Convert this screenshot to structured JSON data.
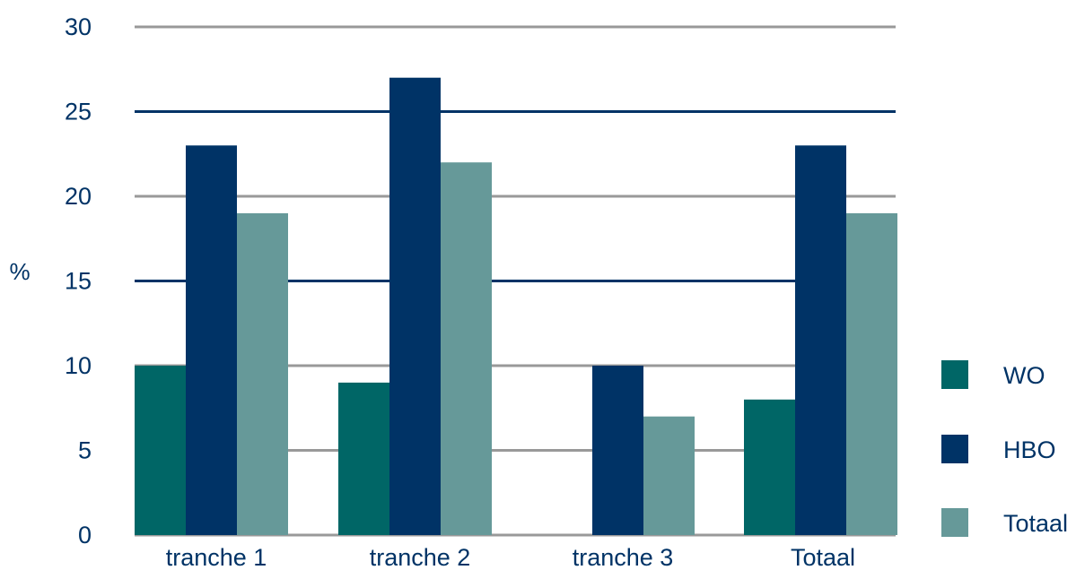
{
  "chart_data": {
    "type": "bar",
    "title": "",
    "xlabel": "",
    "ylabel": "%",
    "ylim": [
      0,
      30
    ],
    "yticks": [
      0,
      5,
      10,
      15,
      20,
      25,
      30
    ],
    "grid": true,
    "legend_position": "right",
    "categories": [
      "tranche 1",
      "tranche 2",
      "tranche 3",
      "Totaal"
    ],
    "series": [
      {
        "name": "WO",
        "color": "#006666",
        "values": [
          10,
          9,
          0,
          8
        ]
      },
      {
        "name": "HBO",
        "color": "#003366",
        "values": [
          23,
          27,
          10,
          23
        ]
      },
      {
        "name": "Totaal",
        "color": "#669999",
        "values": [
          19,
          22,
          7,
          19
        ]
      }
    ],
    "gridline_colors": {
      "0": "#999999",
      "5": "#999999",
      "10": "#999999",
      "15": "#003366",
      "20": "#999999",
      "25": "#003366",
      "30": "#999999"
    }
  }
}
